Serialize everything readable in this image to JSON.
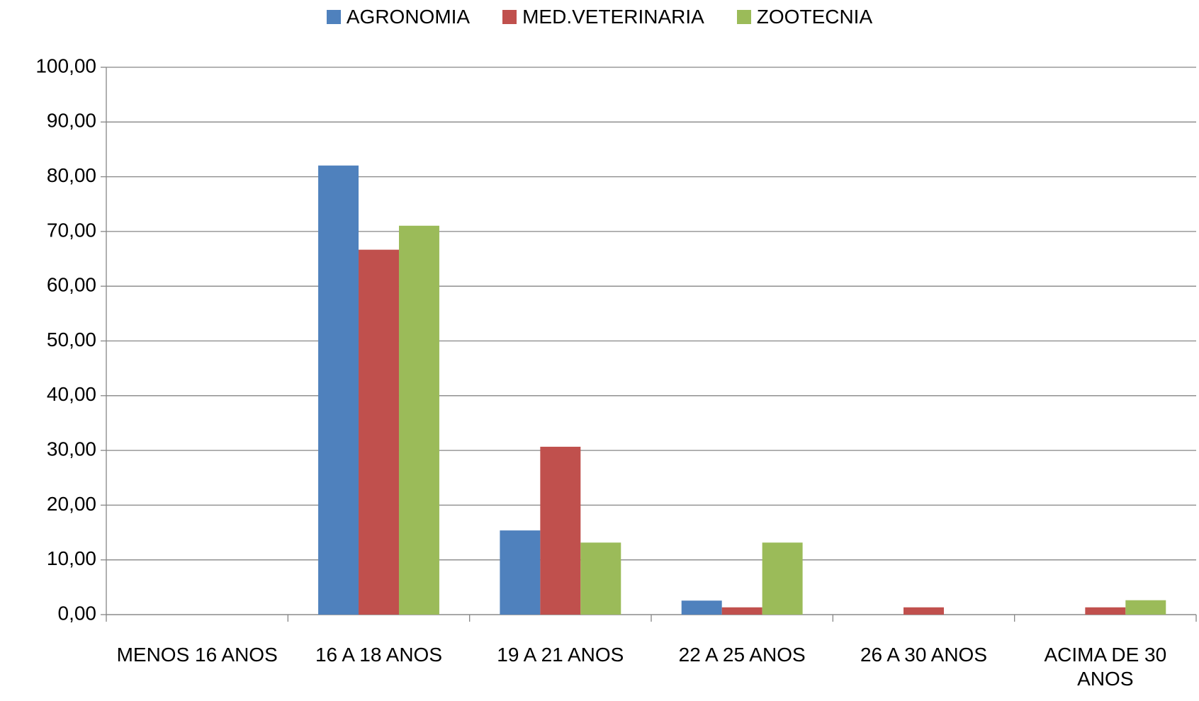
{
  "chart_data": {
    "type": "bar",
    "categories": [
      "MENOS 16 ANOS",
      "16 A 18 ANOS",
      "19 A 21 ANOS",
      "22 A 25 ANOS",
      "26 A 30 ANOS",
      "ACIMA DE 30 ANOS"
    ],
    "series": [
      {
        "name": "AGRONOMIA",
        "color": "#4f81bd",
        "values": [
          0,
          82.05,
          15.38,
          2.56,
          0,
          0
        ]
      },
      {
        "name": "MED.VETERINARIA",
        "color": "#c0504d",
        "values": [
          0,
          66.67,
          30.67,
          1.33,
          1.33,
          1.33
        ]
      },
      {
        "name": "ZOOTECNIA",
        "color": "#9bbb59",
        "values": [
          0,
          71.05,
          13.16,
          13.16,
          0,
          2.63
        ]
      }
    ],
    "ylim": [
      0,
      100
    ],
    "yticks": [
      {
        "value": 0,
        "label": "0,00"
      },
      {
        "value": 10,
        "label": "10,00"
      },
      {
        "value": 20,
        "label": "20,00"
      },
      {
        "value": 30,
        "label": "30,00"
      },
      {
        "value": 40,
        "label": "40,00"
      },
      {
        "value": 50,
        "label": "50,00"
      },
      {
        "value": 60,
        "label": "60,00"
      },
      {
        "value": 70,
        "label": "70,00"
      },
      {
        "value": 80,
        "label": "80,00"
      },
      {
        "value": 90,
        "label": "90,00"
      },
      {
        "value": 100,
        "label": "100,00"
      }
    ],
    "grid": true,
    "legend": "top"
  }
}
